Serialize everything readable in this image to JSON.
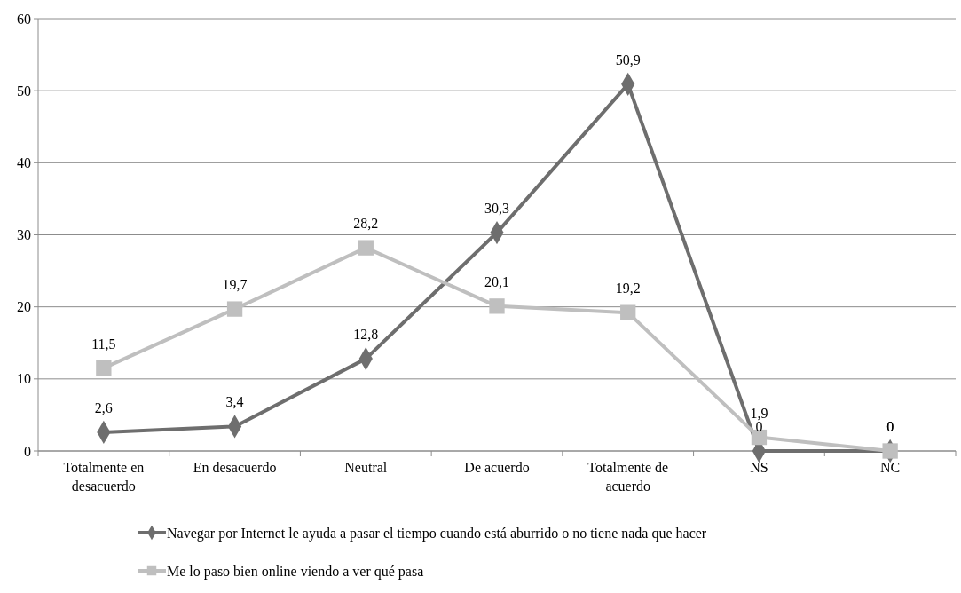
{
  "chart_data": {
    "type": "line",
    "categories": [
      "Totalmente en desacuerdo",
      "En desacuerdo",
      "Neutral",
      "De acuerdo",
      "Totalmente de acuerdo",
      "NS",
      "NC"
    ],
    "series": [
      {
        "name": "Navegar por Internet le ayuda a pasar el tiempo cuando está aburrido o no tiene nada que hacer",
        "color": "#6e6e6e",
        "marker": "diamond",
        "values": [
          2.6,
          3.4,
          12.8,
          30.3,
          50.9,
          0,
          0
        ],
        "value_labels": [
          "2,6",
          "3,4",
          "12,8",
          "30,3",
          "50,9",
          "0",
          "0"
        ]
      },
      {
        "name": "Me lo paso bien online viendo a ver qué pasa",
        "color": "#bfbfbf",
        "marker": "square",
        "values": [
          11.5,
          19.7,
          28.2,
          20.1,
          19.2,
          1.9,
          0
        ],
        "value_labels": [
          "11,5",
          "19,7",
          "28,2",
          "20,1",
          "19,2",
          "1,9",
          "0"
        ]
      }
    ],
    "ylim": [
      0,
      60
    ],
    "yticks": [
      0,
      10,
      20,
      30,
      40,
      50,
      60
    ],
    "grid": "y",
    "legend": "bottom",
    "line_style": "solid"
  }
}
